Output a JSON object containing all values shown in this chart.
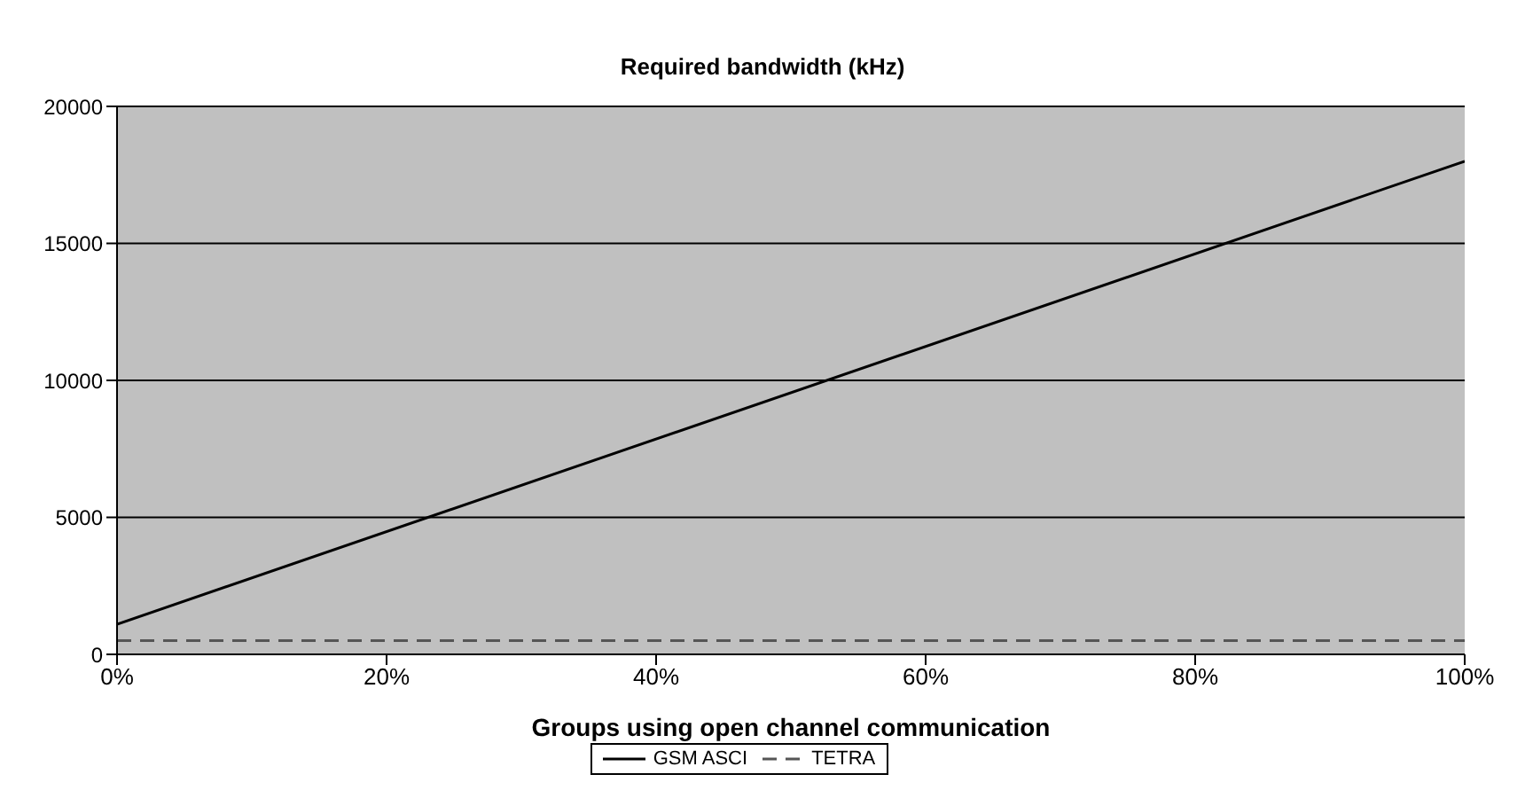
{
  "chart_data": {
    "type": "line",
    "title": "Required bandwidth (kHz)",
    "xlabel": "Groups using open channel communication",
    "x": [
      0,
      100
    ],
    "series": [
      {
        "name": "GSM ASCI",
        "color": "#000000",
        "values": [
          1100,
          18000
        ],
        "line_style": "solid"
      },
      {
        "name": "TETRA",
        "color": "#555555",
        "values": [
          500,
          500
        ],
        "line_style": "dashed"
      }
    ],
    "xlim": [
      0,
      100
    ],
    "xticks": [
      {
        "value": 0,
        "label": "0%"
      },
      {
        "value": 20,
        "label": "20%"
      },
      {
        "value": 40,
        "label": "40%"
      },
      {
        "value": 60,
        "label": "60%"
      },
      {
        "value": 80,
        "label": "80%"
      },
      {
        "value": 100,
        "label": "100%"
      }
    ],
    "ylim": [
      0,
      20000
    ],
    "yticks": [
      0,
      5000,
      10000,
      15000,
      20000
    ],
    "grid": "y",
    "legend": "bottom",
    "marker": "none"
  }
}
